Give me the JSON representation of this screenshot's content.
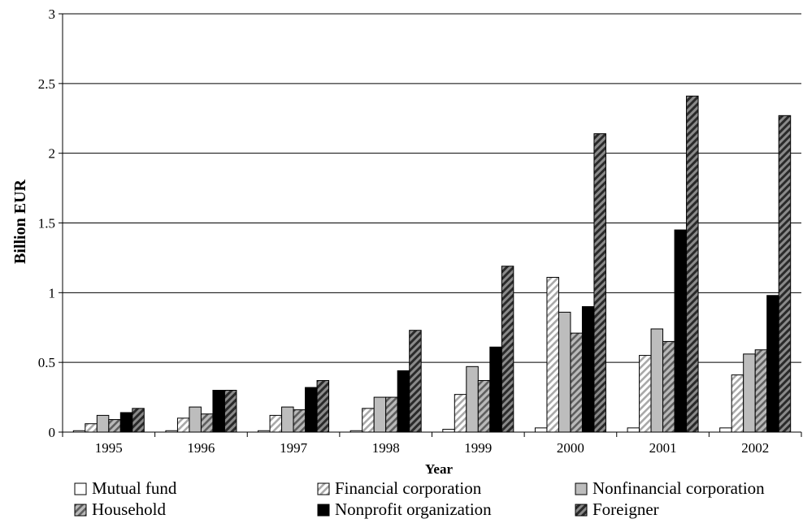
{
  "chart_data": {
    "type": "bar",
    "title": "",
    "xlabel": "Year",
    "ylabel": "Billion EUR",
    "ylim": [
      0,
      3
    ],
    "yticks": [
      0,
      0.5,
      1,
      1.5,
      2,
      2.5,
      3
    ],
    "ytick_labels": [
      "0",
      "0.5",
      "1",
      "1.5",
      "2",
      "2.5",
      "3"
    ],
    "grid": "horizontal",
    "legend_position": "bottom",
    "categories": [
      "1995",
      "1996",
      "1997",
      "1998",
      "1999",
      "2000",
      "2001",
      "2002"
    ],
    "series": [
      {
        "name": "Mutual fund",
        "pattern": "white",
        "values": [
          0.01,
          0.01,
          0.01,
          0.01,
          0.02,
          0.03,
          0.03,
          0.03
        ]
      },
      {
        "name": "Financial corporation",
        "pattern": "hatch-light",
        "values": [
          0.06,
          0.1,
          0.12,
          0.17,
          0.27,
          1.11,
          0.55,
          0.41
        ]
      },
      {
        "name": "Nonfinancial corporation",
        "pattern": "light-gray",
        "values": [
          0.12,
          0.18,
          0.18,
          0.25,
          0.47,
          0.86,
          0.74,
          0.56
        ]
      },
      {
        "name": "Household",
        "pattern": "hatch-gray",
        "values": [
          0.09,
          0.13,
          0.16,
          0.25,
          0.37,
          0.71,
          0.65,
          0.59
        ]
      },
      {
        "name": "Nonprofit organization",
        "pattern": "black",
        "values": [
          0.14,
          0.3,
          0.32,
          0.44,
          0.61,
          0.9,
          1.45,
          0.98
        ]
      },
      {
        "name": "Foreigner",
        "pattern": "hatch-dark",
        "values": [
          0.17,
          0.3,
          0.37,
          0.73,
          1.19,
          2.14,
          2.41,
          2.27
        ]
      }
    ]
  }
}
